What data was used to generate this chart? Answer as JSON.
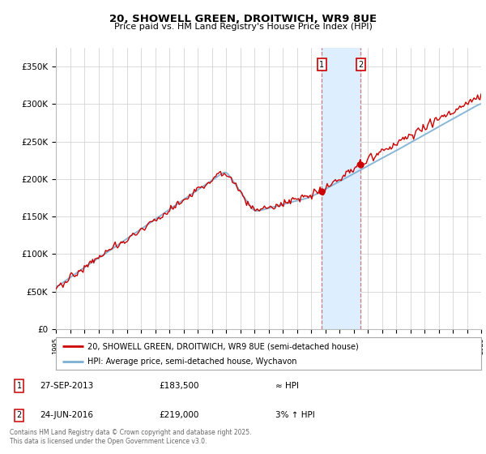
{
  "title1": "20, SHOWELL GREEN, DROITWICH, WR9 8UE",
  "title2": "Price paid vs. HM Land Registry's House Price Index (HPI)",
  "ylabel_ticks": [
    "£0",
    "£50K",
    "£100K",
    "£150K",
    "£200K",
    "£250K",
    "£300K",
    "£350K"
  ],
  "ytick_values": [
    0,
    50000,
    100000,
    150000,
    200000,
    250000,
    300000,
    350000
  ],
  "ylim": [
    0,
    375000
  ],
  "year_start": 1995,
  "year_end": 2025,
  "marker1_date": "27-SEP-2013",
  "marker1_price": 183500,
  "marker1_x": 2013.75,
  "marker2_date": "24-JUN-2016",
  "marker2_price": 219000,
  "marker2_x": 2016.5,
  "legend_line1": "20, SHOWELL GREEN, DROITWICH, WR9 8UE (semi-detached house)",
  "legend_line2": "HPI: Average price, semi-detached house, Wychavon",
  "line_color_red": "#cc0000",
  "line_color_blue": "#7bafd4",
  "shaded_color": "#ddeeff",
  "footer": "Contains HM Land Registry data © Crown copyright and database right 2025.\nThis data is licensed under the Open Government Licence v3.0.",
  "background_color": "#ffffff"
}
